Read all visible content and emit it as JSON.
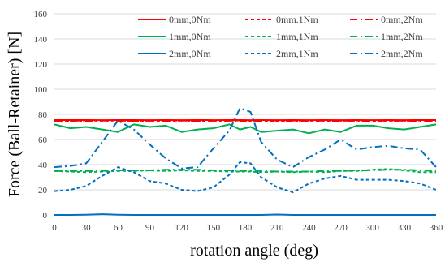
{
  "chart_data": {
    "type": "line",
    "title": "",
    "xlabel": "rotation angle (deg)",
    "ylabel": "Force (Ball-Retainer) [N]",
    "xlim": [
      0,
      360
    ],
    "ylim": [
      0,
      160
    ],
    "xticks": [
      0,
      30,
      60,
      90,
      120,
      150,
      180,
      210,
      240,
      270,
      300,
      330,
      360
    ],
    "yticks": [
      0,
      20,
      40,
      60,
      80,
      100,
      120,
      140,
      160
    ],
    "grid": "horizontal",
    "legend_position": "top-right",
    "x": [
      0,
      15,
      30,
      45,
      60,
      75,
      90,
      105,
      120,
      135,
      150,
      165,
      175,
      185,
      195,
      210,
      225,
      240,
      255,
      270,
      285,
      300,
      315,
      330,
      345,
      360
    ],
    "series": [
      {
        "name": "0mm,0Nm",
        "color": "#ff0000",
        "dash": "solid",
        "values": [
          75.5,
          75.5,
          75.5,
          75.4,
          75.5,
          75.5,
          75.4,
          75.5,
          75.4,
          75.5,
          75.4,
          75.5,
          75.5,
          75.4,
          75.5,
          75.4,
          75.5,
          75.4,
          75.5,
          75.4,
          75.5,
          75.4,
          75.5,
          75.4,
          75.5,
          75.5
        ]
      },
      {
        "name": "0mm.1Nm",
        "color": "#ff0000",
        "dash": "dashed",
        "values": [
          75.0,
          74.8,
          75.2,
          74.9,
          75.1,
          74.8,
          75.0,
          74.9,
          75.1,
          74.8,
          75.0,
          74.9,
          75.2,
          74.9,
          75.0,
          74.8,
          75.1,
          74.9,
          75.0,
          74.9,
          75.1,
          74.8,
          75.0,
          74.9,
          75.1,
          75.0
        ]
      },
      {
        "name": "0mm,2Nm",
        "color": "#ff0000",
        "dash": "dashdot",
        "values": [
          74.8,
          75.0,
          74.6,
          75.1,
          74.9,
          74.7,
          75.0,
          74.8,
          75.1,
          74.6,
          74.9,
          75.0,
          74.7,
          75.0,
          74.8,
          75.1,
          74.7,
          74.9,
          75.0,
          74.8,
          75.0,
          74.7,
          75.1,
          74.9,
          74.8,
          74.9
        ]
      },
      {
        "name": "1mm,0Nm",
        "color": "#00b050",
        "dash": "solid",
        "values": [
          72.0,
          69.0,
          70.0,
          68.0,
          66.0,
          72.0,
          70.0,
          71.0,
          66.0,
          68.0,
          69.0,
          72.0,
          68.0,
          70.0,
          66.0,
          67.0,
          68.0,
          65.0,
          68.0,
          66.0,
          71.0,
          71.0,
          69.0,
          68.0,
          70.0,
          72.0
        ]
      },
      {
        "name": "1mm,1Nm",
        "color": "#00b050",
        "dash": "dashed",
        "values": [
          35.0,
          34.5,
          34.0,
          34.5,
          35.0,
          35.0,
          35.5,
          35.0,
          35.5,
          35.0,
          35.0,
          34.5,
          34.5,
          34.5,
          34.0,
          34.5,
          34.0,
          34.5,
          34.0,
          35.0,
          35.0,
          36.0,
          36.5,
          35.5,
          34.0,
          34.0
        ]
      },
      {
        "name": "1mm,2Nm",
        "color": "#00b050",
        "dash": "dashdot",
        "values": [
          35.0,
          35.0,
          35.0,
          35.0,
          35.5,
          35.5,
          35.5,
          36.0,
          36.0,
          36.0,
          35.5,
          35.5,
          35.0,
          35.0,
          35.0,
          34.5,
          34.5,
          34.5,
          35.0,
          35.0,
          35.5,
          35.5,
          36.0,
          36.0,
          35.5,
          35.0
        ]
      },
      {
        "name": "2mm,0Nm",
        "color": "#0070c0",
        "dash": "solid",
        "values": [
          0.0,
          0.0,
          0.2,
          0.6,
          0.2,
          0.0,
          0.0,
          0.0,
          0.0,
          0.0,
          0.0,
          0.0,
          0.0,
          0.0,
          0.0,
          0.3,
          0.0,
          0.0,
          0.0,
          0.0,
          0.0,
          0.0,
          0.0,
          0.0,
          0.0,
          0.0
        ]
      },
      {
        "name": "2mm,1Nm",
        "color": "#0070c0",
        "dash": "dashed",
        "values": [
          19.0,
          20.0,
          23.0,
          31.0,
          38.0,
          34.0,
          27.0,
          25.0,
          20.0,
          19.0,
          22.0,
          32.0,
          42.0,
          41.0,
          30.0,
          22.0,
          18.0,
          25.0,
          29.0,
          31.0,
          28.0,
          28.0,
          28.0,
          27.0,
          25.0,
          20.0
        ]
      },
      {
        "name": "2mm,2Nm",
        "color": "#0070c0",
        "dash": "dashdot",
        "values": [
          38.0,
          39.0,
          41.0,
          58.0,
          75.0,
          68.0,
          56.0,
          45.0,
          37.0,
          38.0,
          53.0,
          67.0,
          85.0,
          82.0,
          58.0,
          44.0,
          38.0,
          46.0,
          52.0,
          60.0,
          52.0,
          54.0,
          55.0,
          53.0,
          52.0,
          38.0
        ]
      }
    ]
  }
}
